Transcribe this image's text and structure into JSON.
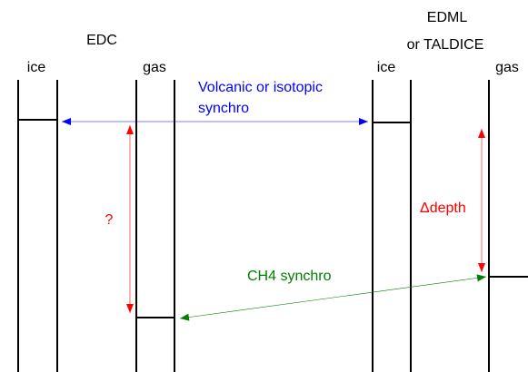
{
  "left_core": {
    "name": "EDC",
    "ice": "ice",
    "gas": "gas"
  },
  "right_core": {
    "name": "EDML",
    "name_alt": "or TALDICE",
    "ice": "ice",
    "gas": "gas"
  },
  "annotations": {
    "volcanic_line1": "Volcanic or isotopic",
    "volcanic_line2": "synchro",
    "unknown": "?",
    "delta_depth": "Δdepth",
    "ch4": "CH4 synchro"
  }
}
